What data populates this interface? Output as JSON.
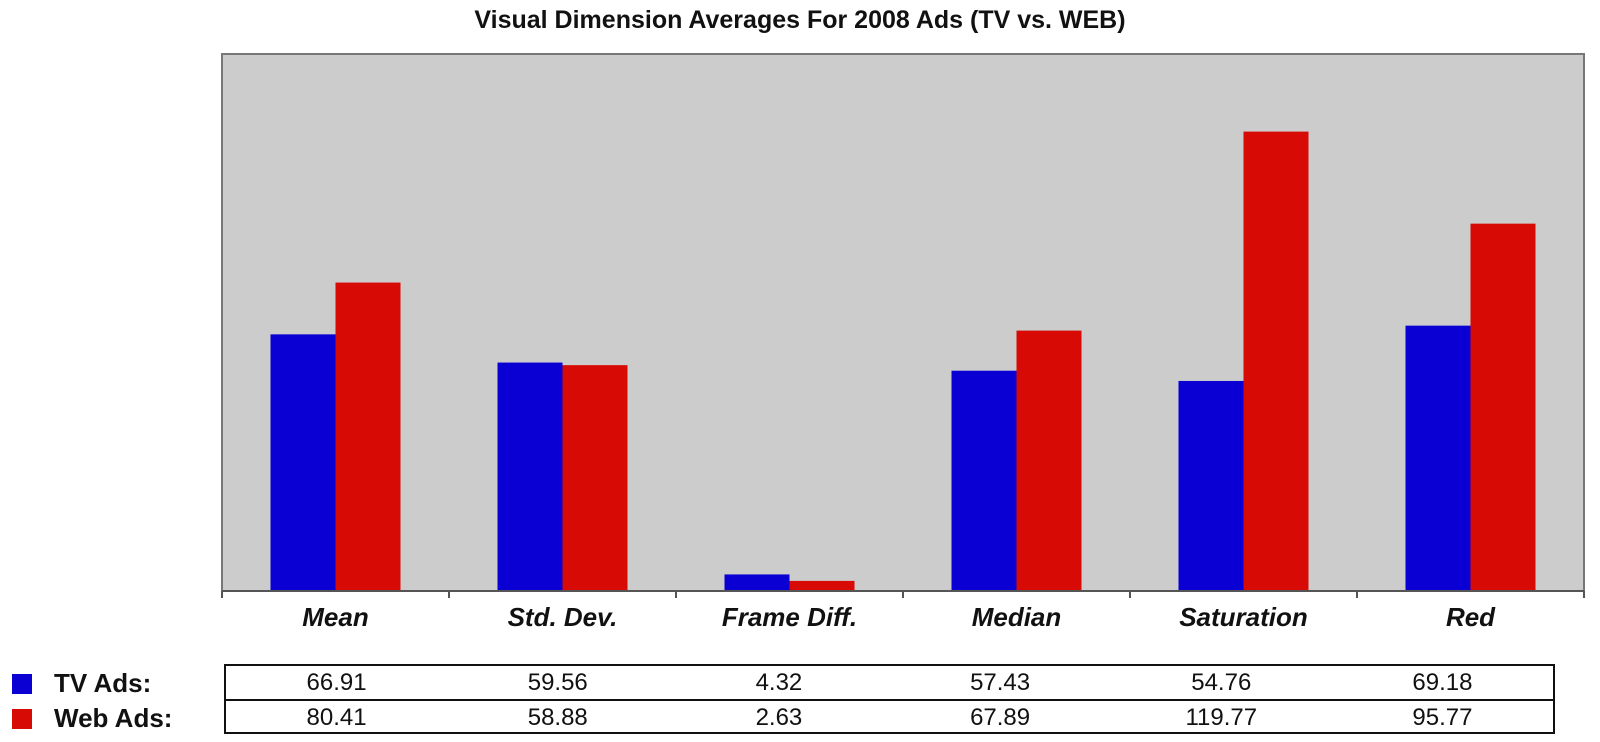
{
  "colors": {
    "tv": "#0a00d4",
    "web": "#d80a05",
    "plot_bg": "#cccccc"
  },
  "legend": {
    "tv_label": "TV Ads:",
    "web_label": "Web Ads:"
  },
  "table": {
    "tv_values": [
      "66.91",
      "59.56",
      "4.32",
      "57.43",
      "54.76",
      "69.18"
    ],
    "web_values": [
      "80.41",
      "58.88",
      "2.63",
      "67.89",
      "119.77",
      "95.77"
    ]
  },
  "chart_data": {
    "type": "bar",
    "title": "Visual Dimension Averages For 2008 Ads (TV vs. WEB)",
    "categories": [
      "Mean",
      "Std. Dev.",
      "Frame Diff.",
      "Median",
      "Saturation",
      "Red"
    ],
    "series": [
      {
        "name": "TV Ads",
        "values": [
          66.91,
          59.56,
          4.32,
          57.43,
          54.76,
          69.18
        ]
      },
      {
        "name": "Web Ads",
        "values": [
          80.41,
          58.88,
          2.63,
          67.89,
          119.77,
          95.77
        ]
      }
    ],
    "ylim": [
      0,
      140
    ],
    "grid": false,
    "legend_position": "bottom-left",
    "xlabel": "",
    "ylabel": ""
  }
}
